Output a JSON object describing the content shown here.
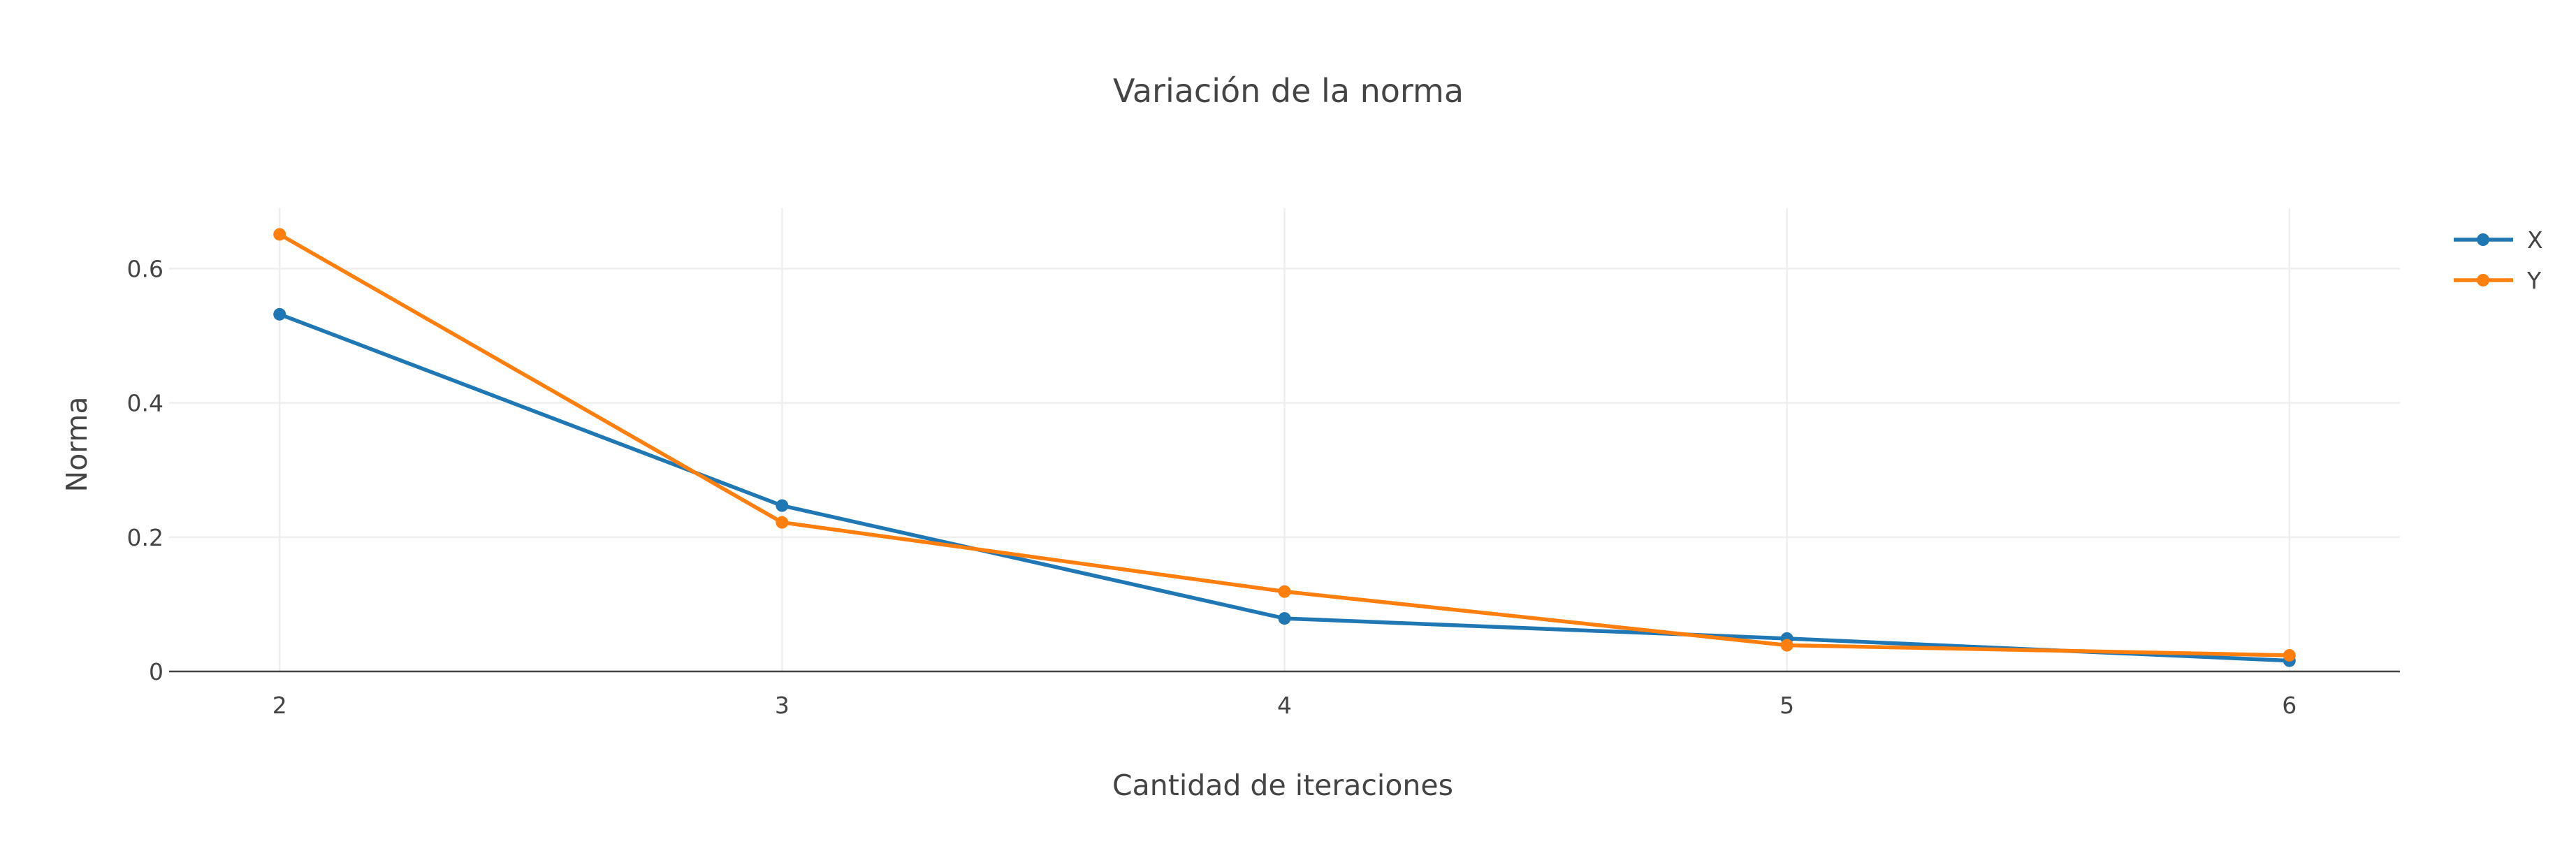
{
  "chart_data": {
    "type": "line",
    "title": "Variación de la norma",
    "xlabel": "Cantidad de iteraciones",
    "ylabel": "Norma",
    "x": [
      2,
      3,
      4,
      5,
      6
    ],
    "x_ticks": [
      "2",
      "3",
      "4",
      "5",
      "6"
    ],
    "y_ticks": [
      "0",
      "0.2",
      "0.4",
      "0.6"
    ],
    "xlim": [
      1.78,
      6.22
    ],
    "ylim": [
      0,
      0.69
    ],
    "grid": true,
    "legend_position": "top-right",
    "series": [
      {
        "name": "X",
        "color": "#1f77b4",
        "values": [
          0.532,
          0.247,
          0.079,
          0.049,
          0.016
        ]
      },
      {
        "name": "Y",
        "color": "#ff7f0e",
        "values": [
          0.651,
          0.222,
          0.119,
          0.039,
          0.024
        ]
      }
    ]
  }
}
